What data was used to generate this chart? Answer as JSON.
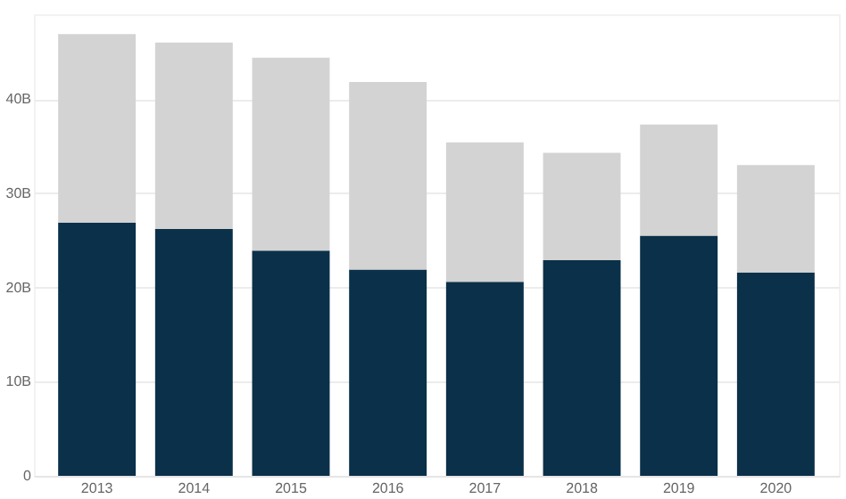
{
  "chart_data": {
    "type": "bar",
    "stacked": true,
    "categories": [
      "2013",
      "2014",
      "2015",
      "2016",
      "2017",
      "2018",
      "2019",
      "2020"
    ],
    "series": [
      {
        "color": "#0b3049",
        "values": [
          26.9,
          26.2,
          23.9,
          21.9,
          20.6,
          22.9,
          25.5,
          21.6
        ]
      },
      {
        "color": "#d3d3d3",
        "values": [
          20.0,
          19.8,
          20.5,
          19.9,
          14.8,
          11.4,
          11.8,
          11.4
        ]
      }
    ],
    "ylim": [
      0,
      49
    ],
    "yticks": [
      0,
      {
        "value": 10,
        "label": "10B"
      },
      {
        "value": 20,
        "label": "20B"
      },
      {
        "value": 30,
        "label": "30B"
      },
      {
        "value": 40,
        "label": "40B"
      }
    ],
    "grid": "y"
  }
}
